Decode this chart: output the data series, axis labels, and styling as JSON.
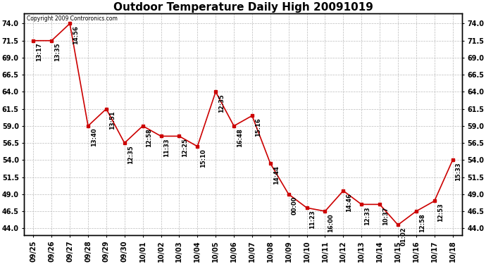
{
  "title": "Outdoor Temperature Daily High 20091019",
  "copyright": "Copyright 2009 Controronics.com",
  "x_labels": [
    "09/25",
    "09/26",
    "09/27",
    "09/28",
    "09/29",
    "09/30",
    "10/01",
    "10/02",
    "10/03",
    "10/04",
    "10/05",
    "10/06",
    "10/07",
    "10/08",
    "10/09",
    "10/10",
    "10/11",
    "10/12",
    "10/13",
    "10/14",
    "10/15",
    "10/16",
    "10/17",
    "10/18"
  ],
  "y_values": [
    71.5,
    71.5,
    74.0,
    59.0,
    61.5,
    56.5,
    59.0,
    57.5,
    57.5,
    56.0,
    64.0,
    59.0,
    60.5,
    53.5,
    49.0,
    47.0,
    46.5,
    49.5,
    47.5,
    47.5,
    44.5,
    46.5,
    48.0,
    54.0
  ],
  "time_labels": [
    "13:17",
    "13:35",
    "14:56",
    "13:40",
    "13:51",
    "12:35",
    "12:58",
    "11:33",
    "12:25",
    "15:10",
    "12:35",
    "16:48",
    "15:16",
    "14:44",
    "00:00",
    "11:23",
    "16:00",
    "14:46",
    "12:33",
    "10:37",
    "01:02",
    "12:58",
    "12:53",
    "15:33"
  ],
  "line_color": "#cc0000",
  "marker_color": "#cc0000",
  "background_color": "#ffffff",
  "grid_color": "#bbbbbb",
  "y_ticks": [
    44.0,
    46.5,
    49.0,
    51.5,
    54.0,
    56.5,
    59.0,
    61.5,
    64.0,
    66.5,
    69.0,
    71.5,
    74.0
  ],
  "ylim": [
    43.0,
    75.5
  ],
  "title_fontsize": 11,
  "tick_fontsize": 7,
  "annot_fontsize": 6,
  "copyright_fontsize": 5.5
}
